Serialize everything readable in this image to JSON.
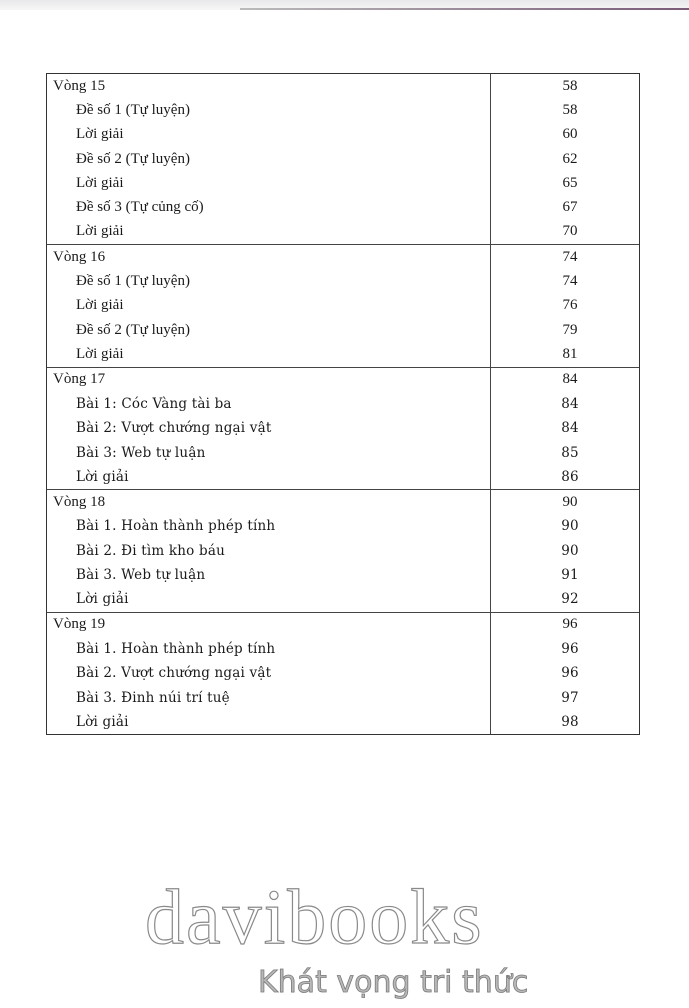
{
  "toc": [
    {
      "title": "Vòng 15",
      "page": "58",
      "style": "times",
      "items": [
        {
          "title": "Đề số 1 (Tự luyện)",
          "page": "58"
        },
        {
          "title": "Lời giải",
          "page": "60"
        },
        {
          "title": "Đề số 2 (Tự luyện)",
          "page": "62"
        },
        {
          "title": "Lời giải",
          "page": "65"
        },
        {
          "title": "Đề số 3 (Tự củng cố)",
          "page": "67"
        },
        {
          "title": "Lời giải",
          "page": "70"
        }
      ]
    },
    {
      "title": "Vòng 16",
      "page": "74",
      "style": "times",
      "items": [
        {
          "title": "Đề số 1 (Tự luyện)",
          "page": "74"
        },
        {
          "title": "Lời giải",
          "page": "76"
        },
        {
          "title": "Đề số 2 (Tự luyện)",
          "page": "79"
        },
        {
          "title": "Lời giải",
          "page": "81"
        }
      ]
    },
    {
      "title": "Vòng 17",
      "page": "84",
      "style": "alt",
      "items": [
        {
          "title": "Bài 1: Cóc Vàng tài ba",
          "page": "84"
        },
        {
          "title": "Bài 2: Vượt chướng ngại vật",
          "page": "84"
        },
        {
          "title": "Bài 3: Web tự luận",
          "page": "85"
        },
        {
          "title": "Lời giải",
          "page": "86"
        }
      ]
    },
    {
      "title": "Vòng 18",
      "page": "90",
      "style": "alt",
      "items": [
        {
          "title": "Bài 1. Hoàn thành phép tính",
          "page": "90"
        },
        {
          "title": "Bài 2. Đi tìm kho báu",
          "page": "90"
        },
        {
          "title": "Bài 3. Web tự luận",
          "page": "91"
        },
        {
          "title": "Lời giải",
          "page": "92"
        }
      ]
    },
    {
      "title": "Vòng 19",
      "page": "96",
      "style": "alt",
      "items": [
        {
          "title": "Bài 1. Hoàn thành phép tính",
          "page": "96"
        },
        {
          "title": "Bài 2. Vượt chướng ngại vật",
          "page": "96"
        },
        {
          "title": "Bài 3. Đinh núi trí tuệ",
          "page": "97"
        },
        {
          "title": "Lời giải",
          "page": "98"
        }
      ]
    }
  ],
  "watermark": {
    "brand": "davibooks",
    "tagline": "Khát vọng tri thức"
  }
}
